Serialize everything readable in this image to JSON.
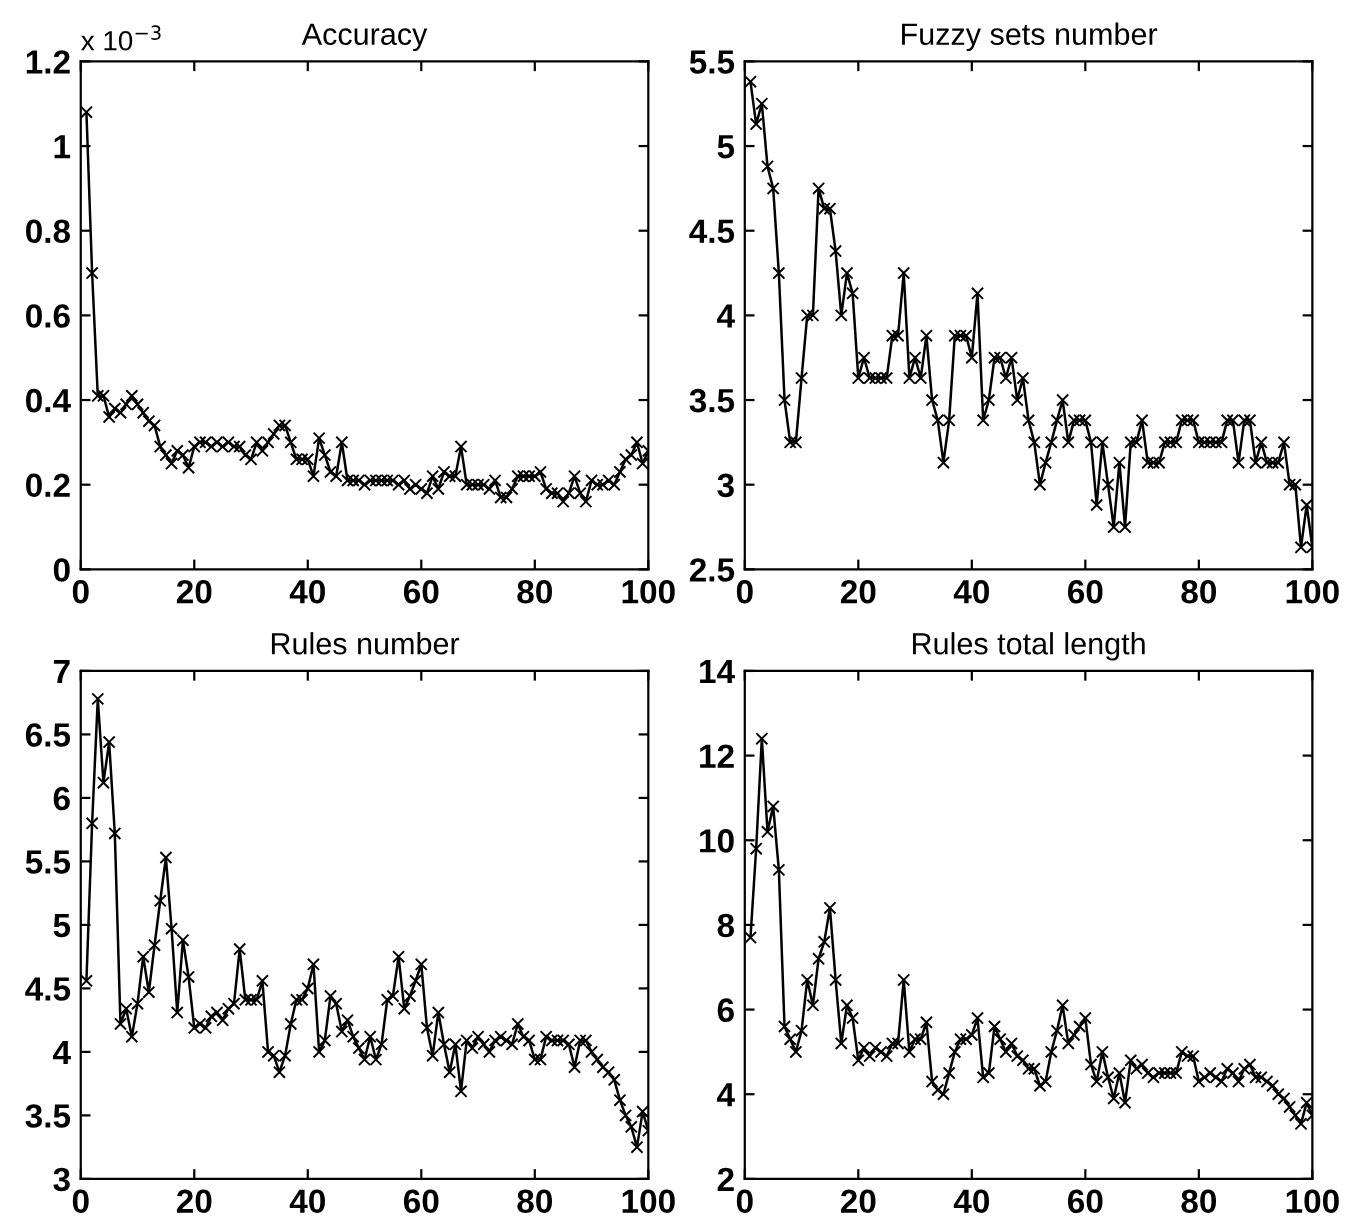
{
  "chart_data": [
    {
      "type": "line",
      "title": "Accuracy",
      "annotations": [
        "x 10$^{−3}$"
      ],
      "marker": "cross",
      "line_style": "solid",
      "grid": false,
      "legend": false,
      "xlim": [
        0,
        100
      ],
      "xticks": [
        0,
        20,
        40,
        60,
        80,
        100
      ],
      "ylim": [
        0,
        1.2
      ],
      "yticks": [
        0,
        0.2,
        0.4,
        0.6,
        0.8,
        1,
        1.2
      ],
      "x": [
        1,
        2,
        3,
        4,
        5,
        6,
        7,
        8,
        9,
        10,
        11,
        12,
        13,
        14,
        15,
        16,
        17,
        18,
        19,
        20,
        21,
        22,
        23,
        24,
        25,
        26,
        27,
        28,
        29,
        30,
        31,
        32,
        33,
        34,
        35,
        36,
        37,
        38,
        39,
        40,
        41,
        42,
        43,
        44,
        45,
        46,
        47,
        48,
        49,
        50,
        51,
        52,
        53,
        54,
        55,
        56,
        57,
        58,
        59,
        60,
        61,
        62,
        63,
        64,
        65,
        66,
        67,
        68,
        69,
        70,
        71,
        72,
        73,
        74,
        75,
        76,
        77,
        78,
        79,
        80,
        81,
        82,
        83,
        84,
        85,
        86,
        87,
        88,
        89,
        90,
        91,
        92,
        93,
        94,
        95,
        96,
        97,
        98,
        99,
        100
      ],
      "series": [
        {
          "color": "#000000",
          "values": [
            1.08,
            0.7,
            0.41,
            0.41,
            0.36,
            0.38,
            0.37,
            0.39,
            0.41,
            0.39,
            0.37,
            0.35,
            0.34,
            0.29,
            0.27,
            0.25,
            0.28,
            0.27,
            0.24,
            0.29,
            0.3,
            0.3,
            0.29,
            0.3,
            0.29,
            0.3,
            0.29,
            0.29,
            0.27,
            0.26,
            0.3,
            0.28,
            0.3,
            0.32,
            0.34,
            0.34,
            0.3,
            0.26,
            0.26,
            0.26,
            0.22,
            0.31,
            0.27,
            0.23,
            0.22,
            0.3,
            0.21,
            0.21,
            0.21,
            0.2,
            0.21,
            0.21,
            0.21,
            0.21,
            0.21,
            0.2,
            0.21,
            0.19,
            0.2,
            0.19,
            0.18,
            0.22,
            0.19,
            0.23,
            0.22,
            0.22,
            0.29,
            0.2,
            0.2,
            0.2,
            0.2,
            0.19,
            0.21,
            0.17,
            0.17,
            0.19,
            0.22,
            0.22,
            0.22,
            0.22,
            0.23,
            0.19,
            0.18,
            0.18,
            0.16,
            0.18,
            0.22,
            0.18,
            0.16,
            0.21,
            0.2,
            0.2,
            0.21,
            0.2,
            0.23,
            0.26,
            0.27,
            0.3,
            0.25,
            0.28
          ]
        }
      ]
    },
    {
      "type": "line",
      "title": "Fuzzy sets number",
      "marker": "cross",
      "line_style": "solid",
      "grid": false,
      "legend": false,
      "xlim": [
        0,
        100
      ],
      "xticks": [
        0,
        20,
        40,
        60,
        80,
        100
      ],
      "ylim": [
        2.5,
        5.5
      ],
      "yticks": [
        2.5,
        3,
        3.5,
        4,
        4.5,
        5,
        5.5
      ],
      "x": [
        1,
        2,
        3,
        4,
        5,
        6,
        7,
        8,
        9,
        10,
        11,
        12,
        13,
        14,
        15,
        16,
        17,
        18,
        19,
        20,
        21,
        22,
        23,
        24,
        25,
        26,
        27,
        28,
        29,
        30,
        31,
        32,
        33,
        34,
        35,
        36,
        37,
        38,
        39,
        40,
        41,
        42,
        43,
        44,
        45,
        46,
        47,
        48,
        49,
        50,
        51,
        52,
        53,
        54,
        55,
        56,
        57,
        58,
        59,
        60,
        61,
        62,
        63,
        64,
        65,
        66,
        67,
        68,
        69,
        70,
        71,
        72,
        73,
        74,
        75,
        76,
        77,
        78,
        79,
        80,
        81,
        82,
        83,
        84,
        85,
        86,
        87,
        88,
        89,
        90,
        91,
        92,
        93,
        94,
        95,
        96,
        97,
        98,
        99,
        100
      ],
      "series": [
        {
          "color": "#000000",
          "values": [
            5.38,
            5.13,
            5.25,
            4.88,
            4.75,
            4.25,
            3.5,
            3.25,
            3.25,
            3.63,
            4.0,
            4.0,
            4.75,
            4.63,
            4.63,
            4.38,
            4.0,
            4.25,
            4.13,
            3.63,
            3.75,
            3.63,
            3.63,
            3.63,
            3.63,
            3.88,
            3.88,
            4.25,
            3.63,
            3.75,
            3.63,
            3.88,
            3.5,
            3.38,
            3.13,
            3.38,
            3.88,
            3.88,
            3.88,
            3.75,
            4.13,
            3.38,
            3.5,
            3.75,
            3.75,
            3.63,
            3.75,
            3.5,
            3.63,
            3.38,
            3.25,
            3.0,
            3.13,
            3.25,
            3.38,
            3.5,
            3.25,
            3.38,
            3.38,
            3.38,
            3.25,
            2.88,
            3.25,
            3.0,
            2.75,
            3.13,
            2.75,
            3.25,
            3.25,
            3.38,
            3.13,
            3.13,
            3.13,
            3.25,
            3.25,
            3.25,
            3.38,
            3.38,
            3.38,
            3.25,
            3.25,
            3.25,
            3.25,
            3.25,
            3.38,
            3.38,
            3.13,
            3.38,
            3.38,
            3.13,
            3.25,
            3.13,
            3.13,
            3.13,
            3.25,
            3.0,
            3.0,
            2.63,
            2.88,
            2.63
          ]
        }
      ]
    },
    {
      "type": "line",
      "title": "Rules number",
      "marker": "cross",
      "line_style": "solid",
      "grid": false,
      "legend": false,
      "xlim": [
        0,
        100
      ],
      "xticks": [
        0,
        20,
        40,
        60,
        80,
        100
      ],
      "ylim": [
        3,
        7
      ],
      "yticks": [
        3,
        3.5,
        4,
        4.5,
        5,
        5.5,
        6,
        6.5,
        7
      ],
      "x": [
        1,
        2,
        3,
        4,
        5,
        6,
        7,
        8,
        9,
        10,
        11,
        12,
        13,
        14,
        15,
        16,
        17,
        18,
        19,
        20,
        21,
        22,
        23,
        24,
        25,
        26,
        27,
        28,
        29,
        30,
        31,
        32,
        33,
        34,
        35,
        36,
        37,
        38,
        39,
        40,
        41,
        42,
        43,
        44,
        45,
        46,
        47,
        48,
        49,
        50,
        51,
        52,
        53,
        54,
        55,
        56,
        57,
        58,
        59,
        60,
        61,
        62,
        63,
        64,
        65,
        66,
        67,
        68,
        69,
        70,
        71,
        72,
        73,
        74,
        75,
        76,
        77,
        78,
        79,
        80,
        81,
        82,
        83,
        84,
        85,
        86,
        87,
        88,
        89,
        90,
        91,
        92,
        93,
        94,
        95,
        96,
        97,
        98,
        99,
        100
      ],
      "series": [
        {
          "color": "#000000",
          "values": [
            4.56,
            5.8,
            6.78,
            6.12,
            6.44,
            5.72,
            4.22,
            4.34,
            4.12,
            4.38,
            4.75,
            4.47,
            4.84,
            5.19,
            5.53,
            4.97,
            4.31,
            4.88,
            4.59,
            4.19,
            4.22,
            4.19,
            4.28,
            4.31,
            4.25,
            4.34,
            4.38,
            4.81,
            4.41,
            4.41,
            4.41,
            4.56,
            4.0,
            3.97,
            3.84,
            3.97,
            4.22,
            4.41,
            4.41,
            4.5,
            4.69,
            4.0,
            4.09,
            4.44,
            4.38,
            4.16,
            4.25,
            4.12,
            4.03,
            3.94,
            4.12,
            3.94,
            4.06,
            4.41,
            4.44,
            4.75,
            4.34,
            4.44,
            4.56,
            4.69,
            4.19,
            3.97,
            4.31,
            4.06,
            3.84,
            4.06,
            3.69,
            4.09,
            4.03,
            4.12,
            4.06,
            4.0,
            4.09,
            4.12,
            4.09,
            4.06,
            4.22,
            4.12,
            4.09,
            3.94,
            3.94,
            4.12,
            4.09,
            4.09,
            4.09,
            4.06,
            3.88,
            4.09,
            4.09,
            4.0,
            3.94,
            3.88,
            3.84,
            3.78,
            3.62,
            3.5,
            3.41,
            3.25,
            3.53,
            3.38
          ]
        }
      ]
    },
    {
      "type": "line",
      "title": "Rules total length",
      "marker": "cross",
      "line_style": "solid",
      "grid": false,
      "legend": false,
      "xlim": [
        0,
        100
      ],
      "xticks": [
        0,
        20,
        40,
        60,
        80,
        100
      ],
      "ylim": [
        2,
        14
      ],
      "yticks": [
        2,
        4,
        6,
        8,
        10,
        12,
        14
      ],
      "x": [
        1,
        2,
        3,
        4,
        5,
        6,
        7,
        8,
        9,
        10,
        11,
        12,
        13,
        14,
        15,
        16,
        17,
        18,
        19,
        20,
        21,
        22,
        23,
        24,
        25,
        26,
        27,
        28,
        29,
        30,
        31,
        32,
        33,
        34,
        35,
        36,
        37,
        38,
        39,
        40,
        41,
        42,
        43,
        44,
        45,
        46,
        47,
        48,
        49,
        50,
        51,
        52,
        53,
        54,
        55,
        56,
        57,
        58,
        59,
        60,
        61,
        62,
        63,
        64,
        65,
        66,
        67,
        68,
        69,
        70,
        71,
        72,
        73,
        74,
        75,
        76,
        77,
        78,
        79,
        80,
        81,
        82,
        83,
        84,
        85,
        86,
        87,
        88,
        89,
        90,
        91,
        92,
        93,
        94,
        95,
        96,
        97,
        98,
        99,
        100
      ],
      "series": [
        {
          "color": "#000000",
          "values": [
            7.7,
            9.8,
            12.4,
            10.2,
            10.8,
            9.3,
            5.6,
            5.3,
            5.0,
            5.5,
            6.7,
            6.1,
            7.2,
            7.6,
            8.4,
            6.7,
            5.2,
            6.1,
            5.8,
            4.8,
            5.1,
            4.9,
            5.1,
            5.0,
            4.9,
            5.2,
            5.2,
            6.7,
            5.0,
            5.3,
            5.3,
            5.7,
            4.3,
            4.1,
            4.0,
            4.5,
            5.0,
            5.3,
            5.3,
            5.4,
            5.8,
            4.4,
            4.5,
            5.6,
            5.3,
            5.0,
            5.2,
            4.9,
            4.8,
            4.6,
            4.6,
            4.2,
            4.3,
            5.0,
            5.5,
            6.1,
            5.2,
            5.4,
            5.6,
            5.8,
            4.7,
            4.3,
            5.0,
            4.4,
            3.9,
            4.5,
            3.8,
            4.8,
            4.6,
            4.7,
            4.5,
            4.4,
            4.5,
            4.5,
            4.5,
            4.5,
            5.0,
            4.9,
            4.9,
            4.3,
            4.4,
            4.5,
            4.4,
            4.3,
            4.6,
            4.5,
            4.3,
            4.6,
            4.7,
            4.4,
            4.4,
            4.3,
            4.2,
            4.0,
            3.9,
            3.7,
            3.5,
            3.3,
            3.8,
            3.5
          ]
        }
      ]
    }
  ]
}
